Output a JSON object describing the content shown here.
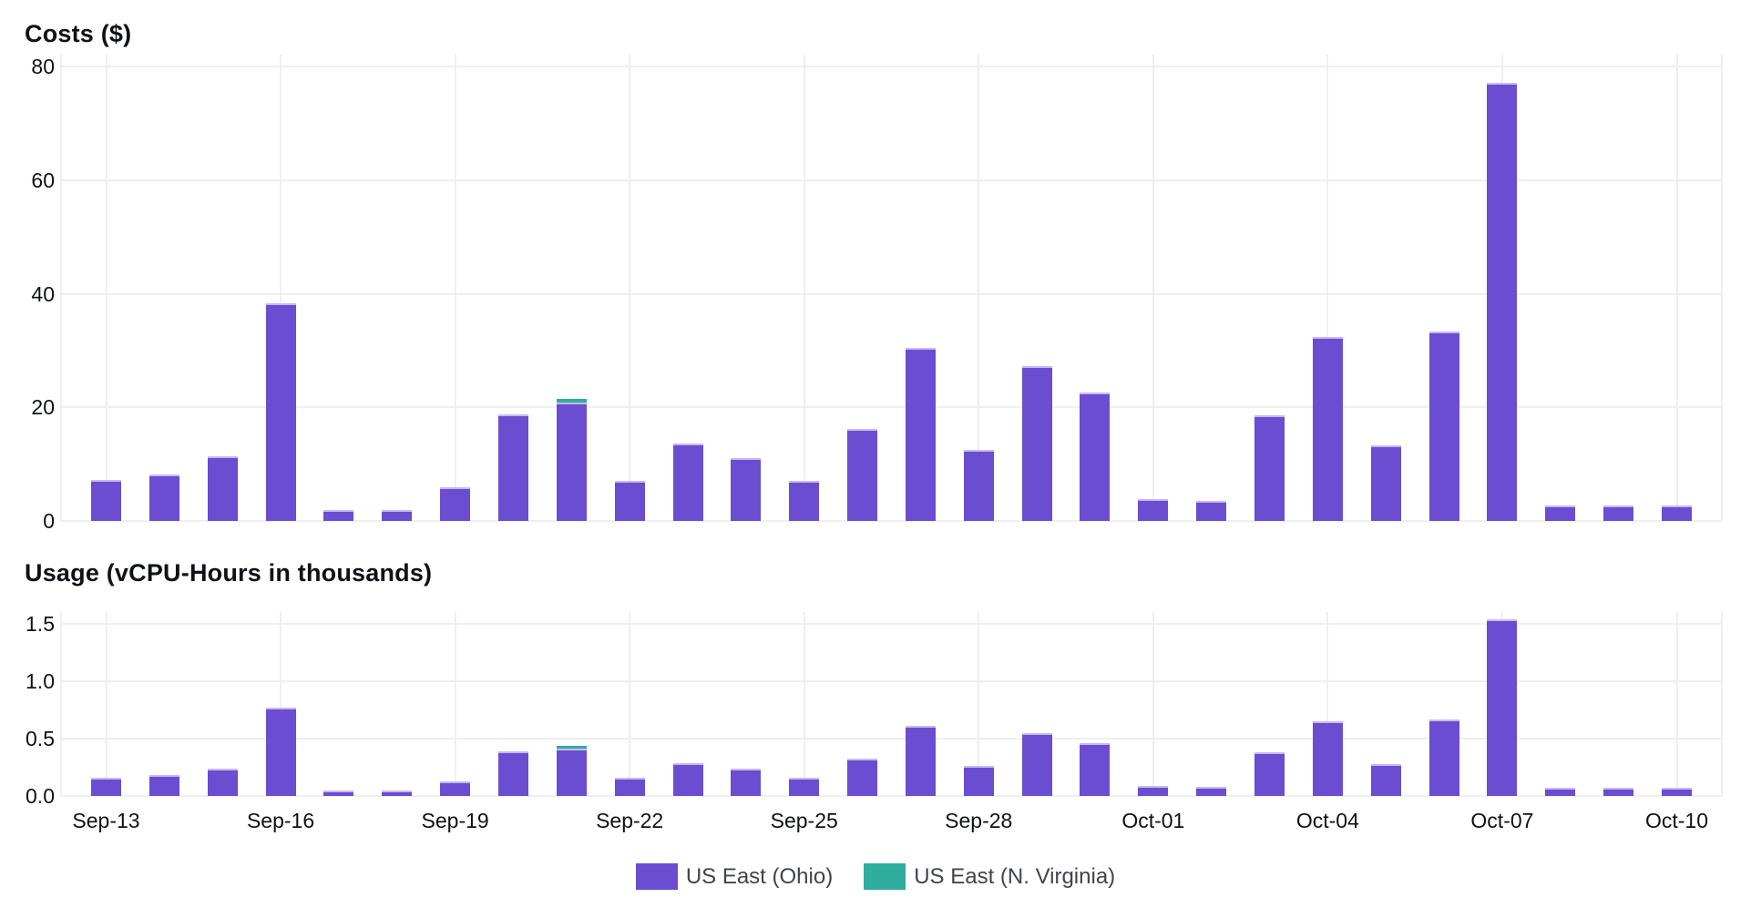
{
  "colors": {
    "ohio": "#6a4dd0",
    "ohio_edge": "#c9b8f0",
    "virginia": "#2fad9e",
    "virginia_edge": "#7ed0c5",
    "grid": "#eeeff0",
    "axis_text": "#0e1118",
    "legend_text": "#3f4450"
  },
  "legend": {
    "items": [
      {
        "label": "US East (Ohio)",
        "color_key": "ohio"
      },
      {
        "label": "US East (N. Virginia)",
        "color_key": "virginia"
      }
    ]
  },
  "chart_data": [
    {
      "type": "bar",
      "stacked": true,
      "title": "Costs ($)",
      "xlabel": "",
      "ylabel": "Costs ($)",
      "ylim": [
        0,
        80
      ],
      "yticks": [
        0,
        20,
        40,
        60,
        80
      ],
      "ytick_labels": [
        "0",
        "20",
        "40",
        "60",
        "80"
      ],
      "grid": true,
      "legend_position": "bottom",
      "categories": [
        "Sep-13",
        "Sep-14",
        "Sep-15",
        "Sep-16",
        "Sep-17",
        "Sep-18",
        "Sep-19",
        "Sep-20",
        "Sep-21",
        "Sep-22",
        "Sep-23",
        "Sep-24",
        "Sep-25",
        "Sep-26",
        "Sep-27",
        "Sep-28",
        "Sep-29",
        "Sep-30",
        "Oct-01",
        "Oct-02",
        "Oct-03",
        "Oct-04",
        "Oct-05",
        "Oct-06",
        "Oct-07",
        "Oct-08",
        "Oct-09",
        "Oct-10"
      ],
      "x_tick_labels": [
        "Sep-13",
        "Sep-16",
        "Sep-19",
        "Sep-22",
        "Sep-25",
        "Sep-28",
        "Oct-01",
        "Oct-04",
        "Oct-07",
        "Oct-10"
      ],
      "series": [
        {
          "name": "US East (Ohio)",
          "values": [
            7.2,
            8.1,
            11.4,
            38.3,
            1.9,
            1.9,
            6.0,
            18.8,
            20.9,
            7.1,
            13.7,
            11.1,
            7.1,
            16.2,
            30.5,
            12.5,
            27.2,
            22.6,
            3.8,
            3.6,
            18.6,
            32.4,
            13.3,
            33.3,
            77.1,
            2.8,
            2.8,
            2.8
          ]
        },
        {
          "name": "US East (N. Virginia)",
          "values": [
            0,
            0,
            0,
            0,
            0,
            0,
            0,
            0,
            0.6,
            0,
            0,
            0,
            0,
            0,
            0,
            0,
            0,
            0,
            0,
            0,
            0,
            0,
            0,
            0,
            0,
            0,
            0,
            0
          ]
        }
      ]
    },
    {
      "type": "bar",
      "stacked": true,
      "title": "Usage (vCPU-Hours in thousands)",
      "xlabel": "",
      "ylabel": "Usage (vCPU-Hours in thousands)",
      "ylim": [
        0,
        1.5
      ],
      "yticks": [
        0,
        0.5,
        1.0,
        1.5
      ],
      "ytick_labels": [
        "0.0",
        "0.5",
        "1.0",
        "1.5"
      ],
      "grid": true,
      "legend_position": "bottom",
      "categories": [
        "Sep-13",
        "Sep-14",
        "Sep-15",
        "Sep-16",
        "Sep-17",
        "Sep-18",
        "Sep-19",
        "Sep-20",
        "Sep-21",
        "Sep-22",
        "Sep-23",
        "Sep-24",
        "Sep-25",
        "Sep-26",
        "Sep-27",
        "Sep-28",
        "Sep-29",
        "Sep-30",
        "Oct-01",
        "Oct-02",
        "Oct-03",
        "Oct-04",
        "Oct-05",
        "Oct-06",
        "Oct-07",
        "Oct-08",
        "Oct-09",
        "Oct-10"
      ],
      "x_tick_labels": [
        "Sep-13",
        "Sep-16",
        "Sep-19",
        "Sep-22",
        "Sep-25",
        "Sep-28",
        "Oct-01",
        "Oct-04",
        "Oct-07",
        "Oct-10"
      ],
      "series": [
        {
          "name": "US East (Ohio)",
          "values": [
            0.16,
            0.18,
            0.24,
            0.77,
            0.05,
            0.05,
            0.13,
            0.39,
            0.41,
            0.16,
            0.29,
            0.24,
            0.16,
            0.33,
            0.61,
            0.26,
            0.55,
            0.46,
            0.09,
            0.08,
            0.38,
            0.65,
            0.28,
            0.67,
            1.54,
            0.07,
            0.07,
            0.07
          ]
        },
        {
          "name": "US East (N. Virginia)",
          "values": [
            0,
            0,
            0,
            0,
            0,
            0,
            0,
            0,
            0.03,
            0,
            0,
            0,
            0,
            0,
            0,
            0,
            0,
            0,
            0,
            0,
            0,
            0,
            0,
            0,
            0,
            0,
            0,
            0
          ]
        }
      ]
    }
  ]
}
